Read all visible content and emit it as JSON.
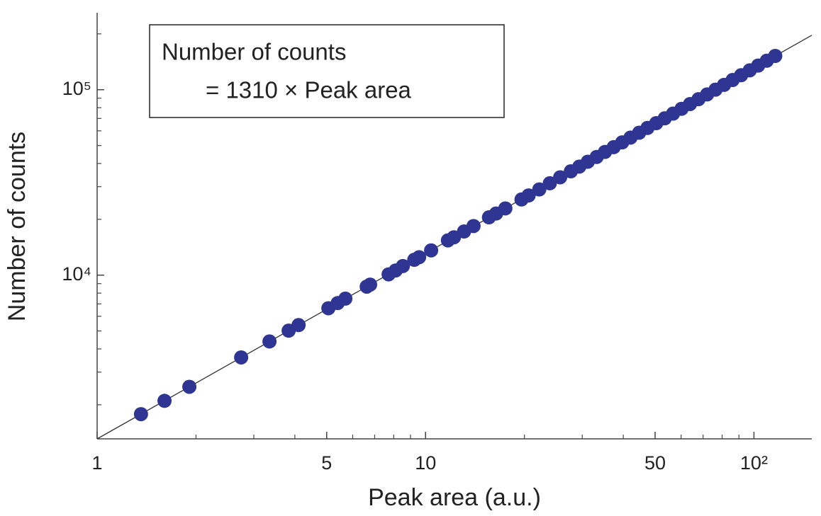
{
  "chart_data": {
    "type": "scatter",
    "x_label": "Peak area (a.u.)",
    "y_label": "Number of counts",
    "annotation": [
      "Number of counts",
      "= 1310 × Peak area"
    ],
    "fit_slope": 1310,
    "xscale": "log",
    "yscale": "log",
    "xlim": [
      1,
      150
    ],
    "ylim": [
      1310,
      260000
    ],
    "xticks": [
      1,
      5,
      10,
      50,
      {
        "value": 100,
        "label": "10²"
      }
    ],
    "yticks": [
      {
        "value": 10000,
        "label": "10⁴"
      },
      {
        "value": 100000,
        "label": "10⁵"
      }
    ],
    "xminorticks": [
      2,
      3,
      4,
      6,
      7,
      8,
      9,
      20,
      30,
      40,
      60,
      70,
      80,
      90
    ],
    "yminorticks": [
      2000,
      3000,
      4000,
      5000,
      6000,
      7000,
      8000,
      9000,
      20000,
      30000,
      40000,
      50000,
      60000,
      70000,
      80000,
      90000,
      200000
    ],
    "series": [
      {
        "name": null,
        "color": "#2f3593",
        "x": [
          1.36,
          1.604,
          1.909,
          2.745,
          3.348,
          3.83,
          4.106,
          5.06,
          5.4,
          5.7,
          6.62,
          6.78,
          7.72,
          8.11,
          8.53,
          9.24,
          9.56,
          10.4,
          11.7,
          12.2,
          13.1,
          14.0,
          15.6,
          16.4,
          17.5,
          19.6,
          20.6,
          22.2,
          23.9,
          25.7,
          27.7,
          29.4,
          31.2,
          33.2,
          35.2,
          37.4,
          39.7,
          42.1,
          44.7,
          47.4,
          50.4,
          53.5,
          56.7,
          60.2,
          63.9,
          67.8,
          72.0,
          76.4,
          81.1,
          86.1,
          91.4,
          97.1,
          103.0,
          109.4,
          116.1
        ],
        "values": [
          1780,
          2100,
          2500,
          3600,
          4390,
          5020,
          5380,
          6630,
          7070,
          7470,
          8670,
          8890,
          10100,
          10600,
          11200,
          12100,
          12500,
          13600,
          15400,
          16000,
          17200,
          18400,
          20500,
          21500,
          22900,
          25600,
          26900,
          29000,
          31300,
          33700,
          36300,
          38500,
          40900,
          43400,
          46200,
          49000,
          52000,
          55200,
          58600,
          62200,
          66000,
          70100,
          74300,
          78900,
          83700,
          88900,
          94300,
          100100,
          106200,
          112800,
          119700,
          127200,
          135000,
          143300,
          152100
        ]
      }
    ]
  }
}
